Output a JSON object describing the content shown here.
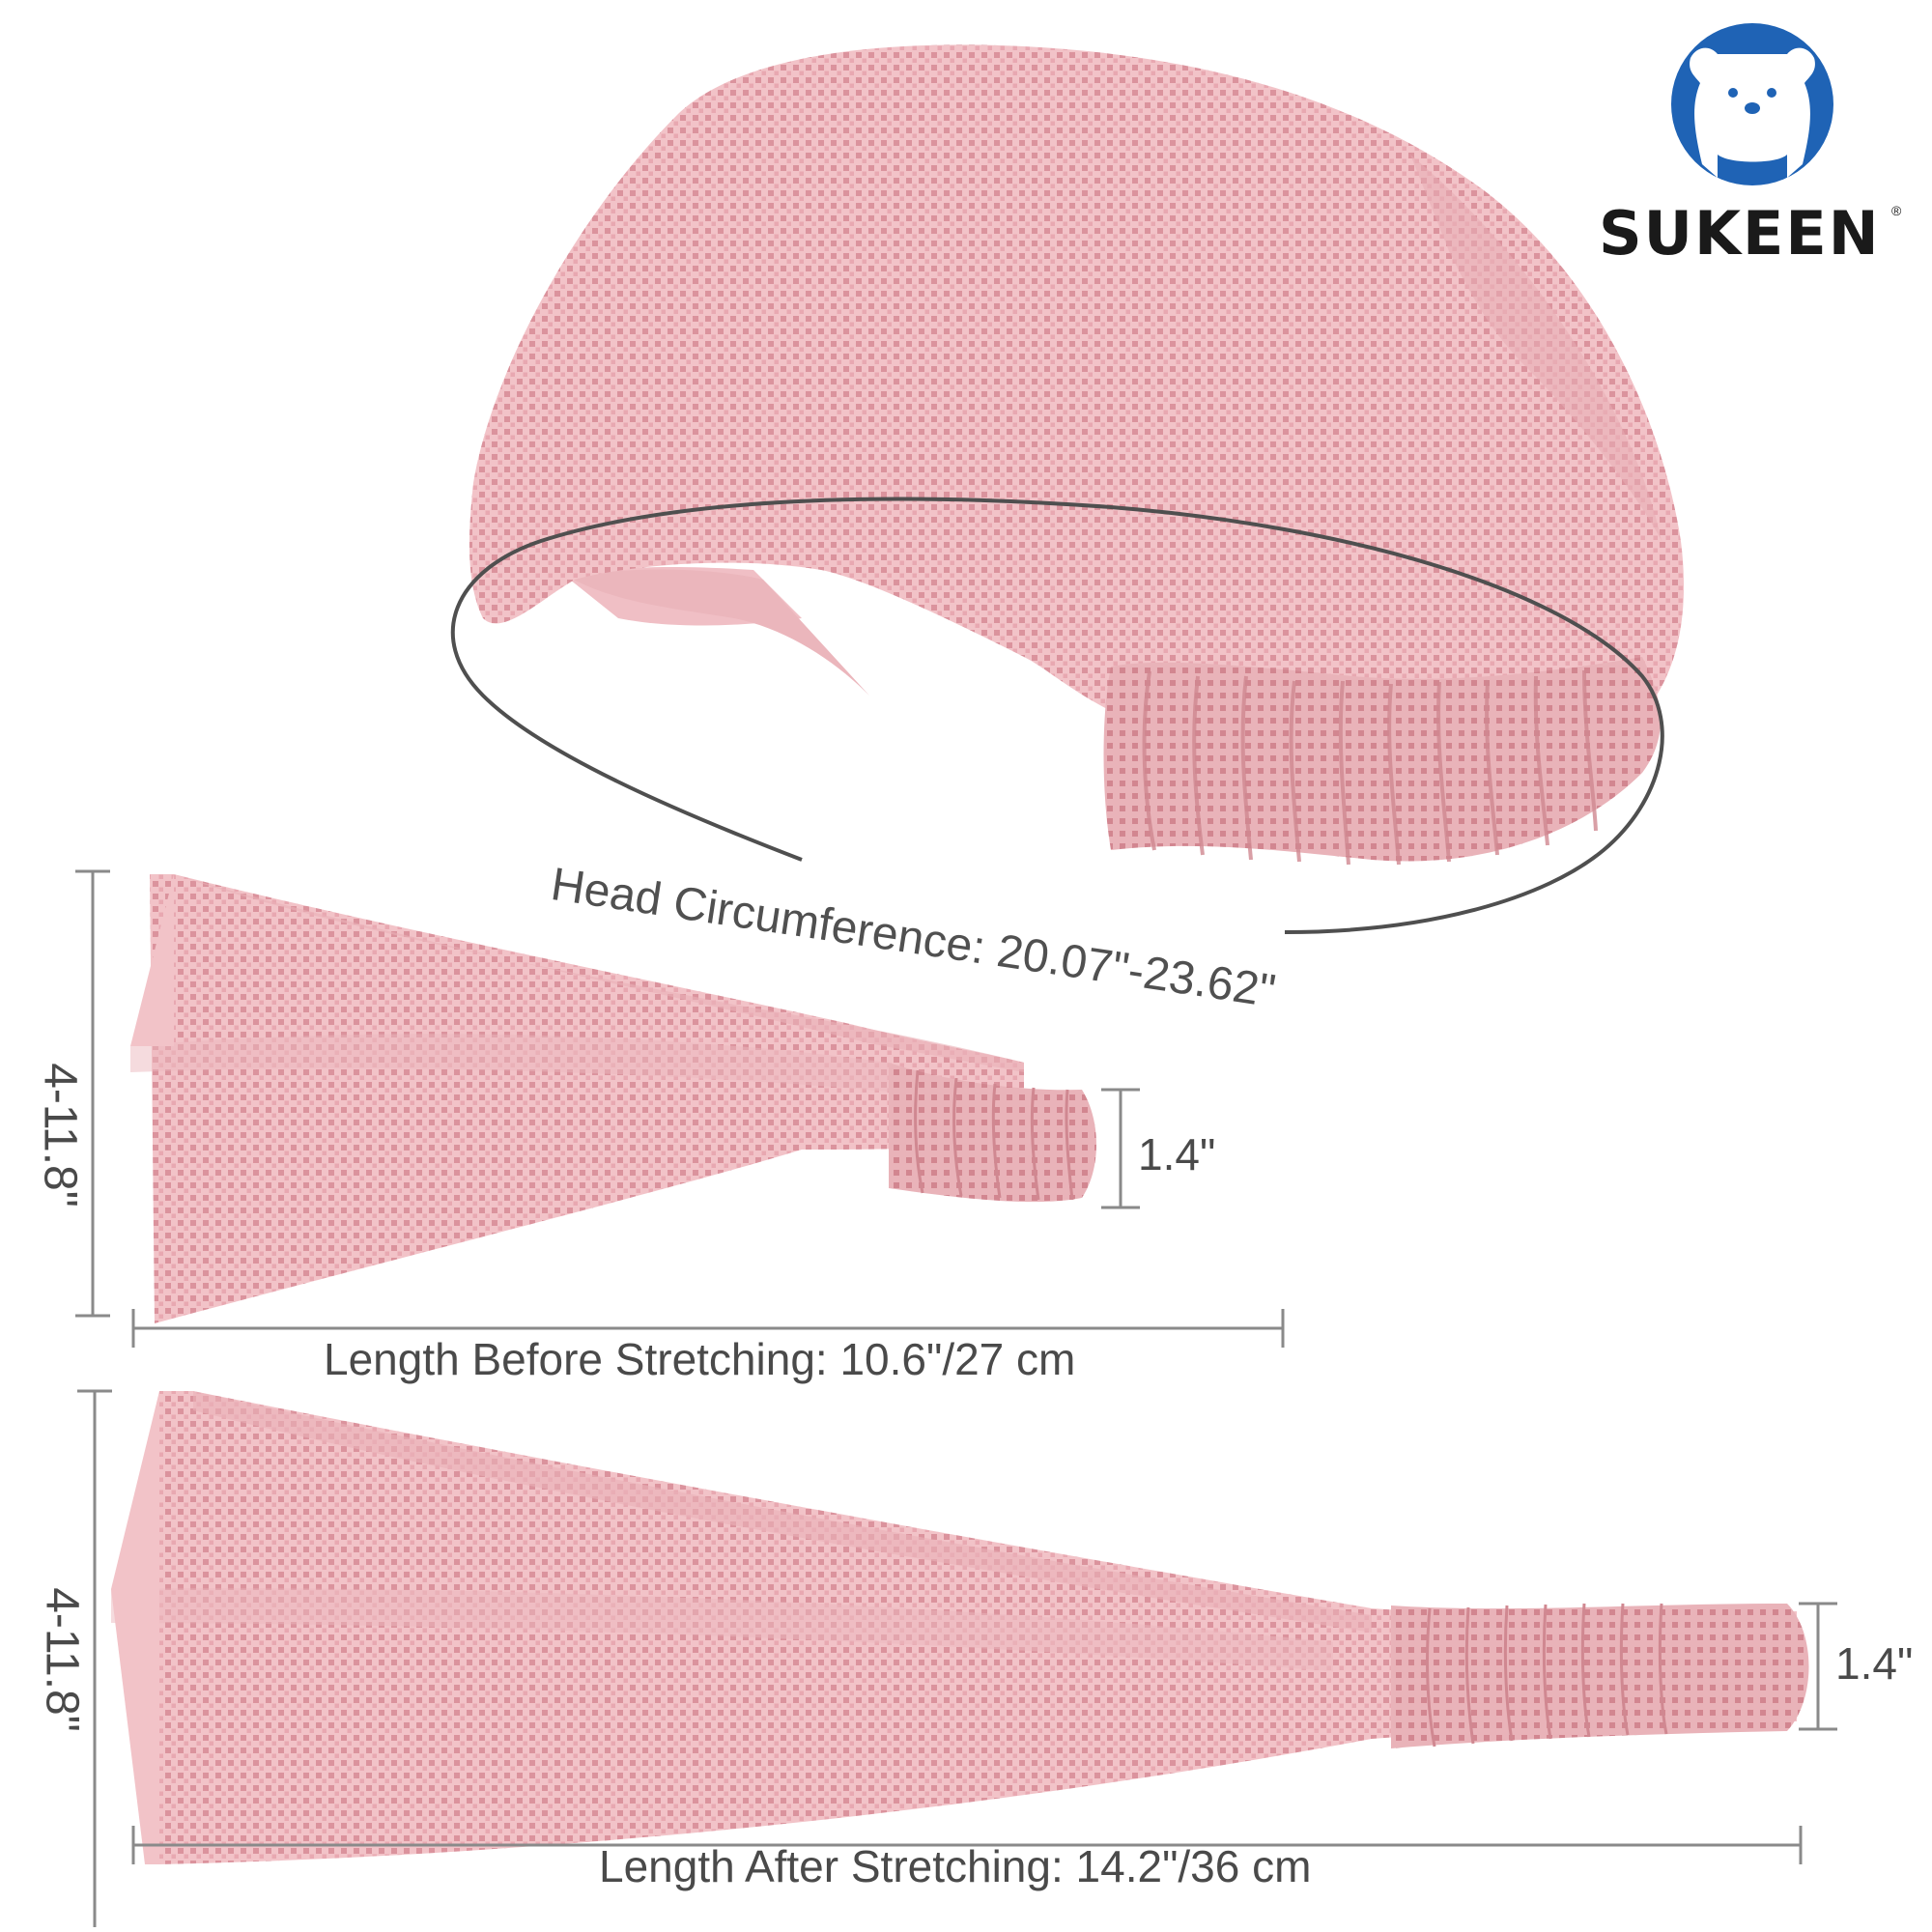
{
  "brand": {
    "name": "SUKEEN",
    "registered_mark": "®",
    "logo_icon": "bear-face-icon",
    "color_logo_blue": "#1f63b5",
    "color_text": "#1a1a1a"
  },
  "product": {
    "color_fabric": "#f2c3c8",
    "color_dots": "#d98e98",
    "color_shadow": "#e6aab2"
  },
  "dimensions": {
    "head_circumference": "Head Circumference: 20.07\"-23.62\"",
    "length_before": "Length Before Stretching: 10.6\"/27 cm",
    "length_after": "Length After Stretching: 14.2\"/36 cm",
    "width_top": "4-11.8\"",
    "width_bottom": "4-11.8\"",
    "elastic_top": "1.4\"",
    "elastic_bottom": "1.4\""
  }
}
